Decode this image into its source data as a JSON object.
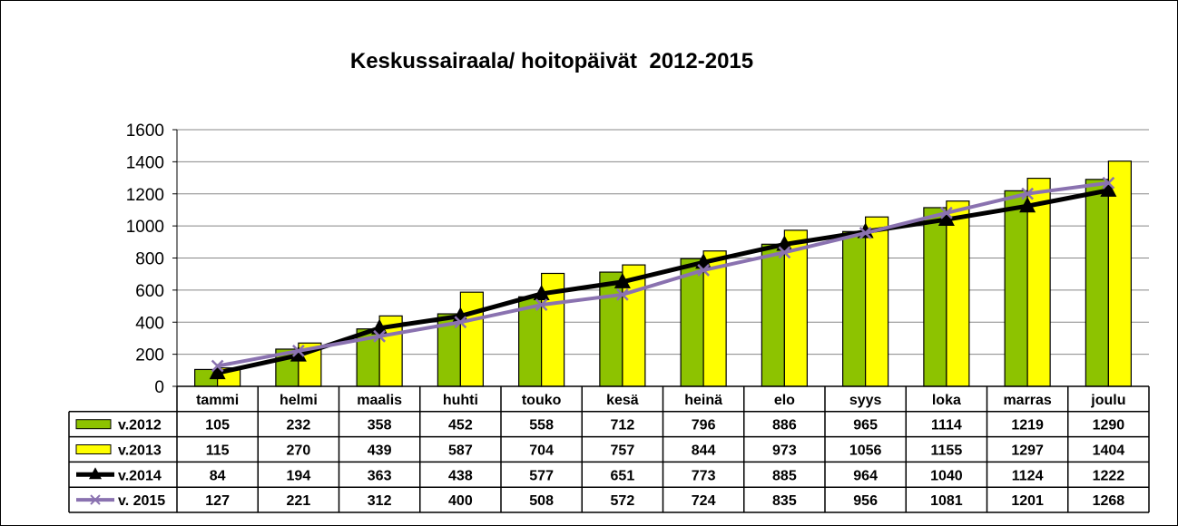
{
  "chart_data": {
    "type": "bar",
    "title": "Keskussairaala/ hoitopäivät  2012-2015",
    "xlabel": "",
    "ylabel": "",
    "ylim": [
      0,
      1600
    ],
    "yticks": [
      0,
      200,
      400,
      600,
      800,
      1000,
      1200,
      1400,
      1600
    ],
    "grid": true,
    "legend": "data-table-left",
    "categories": [
      "tammi",
      "helmi",
      "maalis",
      "huhti",
      "touko",
      "kesä",
      "heinä",
      "elo",
      "syys",
      "loka",
      "marras",
      "joulu"
    ],
    "series": [
      {
        "name": "v.2012",
        "type": "bar",
        "color": "#8DC300",
        "values": [
          105,
          232,
          358,
          452,
          558,
          712,
          796,
          886,
          965,
          1114,
          1219,
          1290
        ]
      },
      {
        "name": "v.2013",
        "type": "bar",
        "color": "#FFFF00",
        "values": [
          115,
          270,
          439,
          587,
          704,
          757,
          844,
          973,
          1056,
          1155,
          1297,
          1404
        ]
      },
      {
        "name": "v.2014",
        "type": "line",
        "marker": "triangle",
        "color": "#000000",
        "values": [
          84,
          194,
          363,
          438,
          577,
          651,
          773,
          885,
          964,
          1040,
          1124,
          1222
        ]
      },
      {
        "name": "v. 2015",
        "type": "line",
        "marker": "x",
        "color": "#8A72B0",
        "values": [
          127,
          221,
          312,
          400,
          508,
          572,
          724,
          835,
          956,
          1081,
          1201,
          1268
        ]
      }
    ]
  }
}
